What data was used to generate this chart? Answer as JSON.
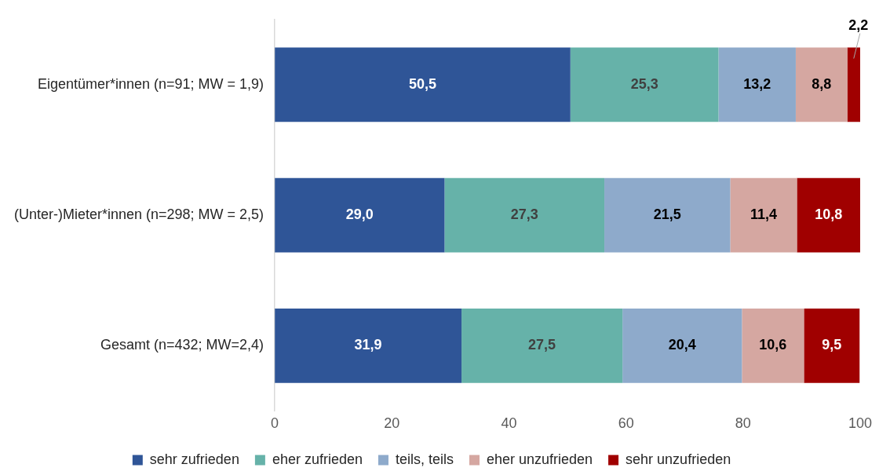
{
  "chart_data": {
    "type": "bar",
    "orientation": "horizontal",
    "stacked": true,
    "categories": [
      "Eigentümer*innen (n=91; MW = 1,9)",
      "(Unter-)Mieter*innen (n=298; MW = 2,5)",
      "Gesamt (n=432; MW=2,4)"
    ],
    "series": [
      {
        "name": "sehr zufrieden",
        "color": "#2f5597",
        "values": [
          50.5,
          29.0,
          31.9
        ],
        "value_labels": [
          "50,5",
          "29,0",
          "31,9"
        ]
      },
      {
        "name": "eher zufrieden",
        "color": "#66b2a9",
        "values": [
          25.3,
          27.3,
          27.5
        ],
        "value_labels": [
          "25,3",
          "27,3",
          "27,5"
        ]
      },
      {
        "name": "teils, teils",
        "color": "#8eaacb",
        "values": [
          13.2,
          21.5,
          20.4
        ],
        "value_labels": [
          "13,2",
          "21,5",
          "20,4"
        ]
      },
      {
        "name": "eher unzufrieden",
        "color": "#d5a7a1",
        "values": [
          8.8,
          11.4,
          10.6
        ],
        "value_labels": [
          "8,8",
          "11,4",
          "10,6"
        ]
      },
      {
        "name": "sehr unzufrieden",
        "color": "#a00000",
        "values": [
          2.2,
          10.8,
          9.5
        ],
        "value_labels": [
          "2,2",
          "10,8",
          "9,5"
        ]
      }
    ],
    "xlim": [
      0,
      100
    ],
    "xticks": [
      0,
      20,
      40,
      60,
      80,
      100
    ],
    "grid": false,
    "legend": "bottom"
  }
}
